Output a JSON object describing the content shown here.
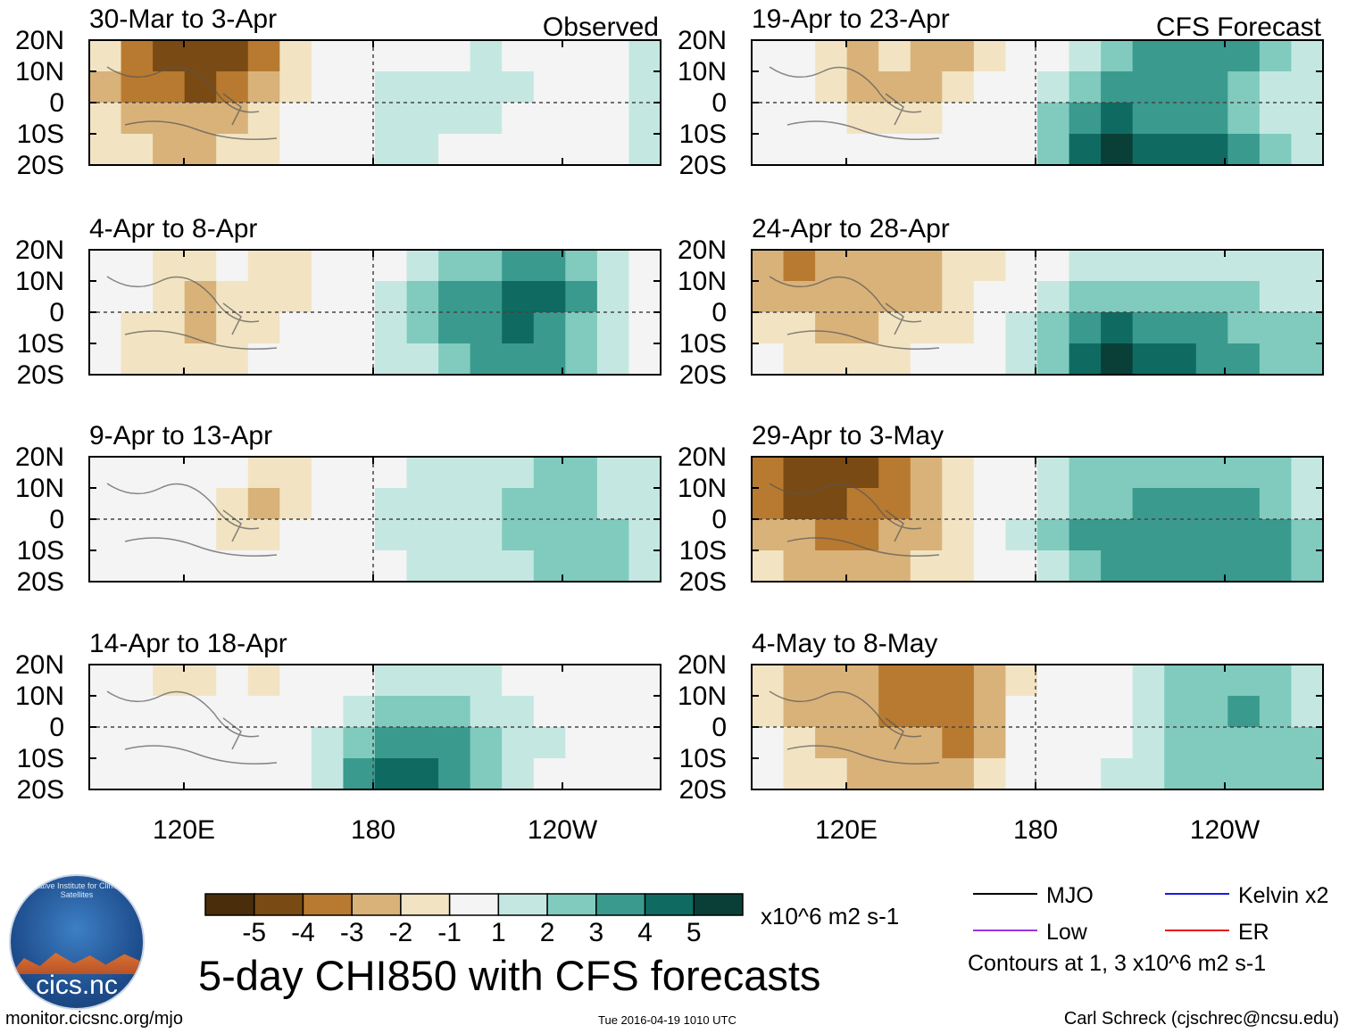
{
  "chart_data": {
    "type": "heatmap",
    "title": "5-day CHI850 with CFS forecasts",
    "colorbar": {
      "unit": "x10^6 m2 s-1",
      "tick_labels": [
        "-5",
        "-4",
        "-3",
        "-2",
        "-1",
        "1",
        "2",
        "3",
        "4",
        "5"
      ],
      "bounds": [
        -5,
        -4,
        -3,
        -2,
        -1,
        1,
        2,
        3,
        4,
        5
      ],
      "colors": [
        "#4a2d0a",
        "#7a4a14",
        "#b87a30",
        "#d9b27a",
        "#f2e4c2",
        "#f4f4f4",
        "#c4e8e1",
        "#80cbbe",
        "#3a9a8e",
        "#0f6b61",
        "#0a3f37"
      ]
    },
    "x_ticks": [
      "120E",
      "180",
      "120W"
    ],
    "y_ticks": [
      "20N",
      "10N",
      "0",
      "10S",
      "20S"
    ],
    "panels": [
      {
        "column": "left",
        "row": 0,
        "title": "30-Mar to 3-Apr",
        "tag": "Observed",
        "cells": [
          [
            -2,
            -4,
            -5,
            -5,
            -5,
            -4,
            -2,
            -1,
            0,
            0,
            0,
            0,
            1,
            0,
            0,
            0,
            0,
            1
          ],
          [
            -3,
            -4,
            -4,
            -5,
            -4,
            -3,
            -2,
            -1,
            0,
            1,
            1,
            1,
            1,
            1,
            0,
            0,
            0,
            1
          ],
          [
            -2,
            -3,
            -3,
            -3,
            -3,
            -2,
            -1,
            0,
            0,
            1,
            1,
            1,
            1,
            0,
            0,
            0,
            0,
            1
          ],
          [
            -2,
            -2,
            -3,
            -3,
            -2,
            -2,
            -1,
            0,
            0,
            1,
            1,
            0,
            0,
            0,
            0,
            0,
            0,
            1
          ]
        ]
      },
      {
        "column": "left",
        "row": 1,
        "title": "4-Apr to 8-Apr",
        "tag": "",
        "cells": [
          [
            -1,
            -1,
            -2,
            -2,
            -1,
            -2,
            -2,
            -1,
            0,
            0,
            1,
            2,
            2,
            3,
            3,
            2,
            1,
            0
          ],
          [
            -1,
            -1,
            -2,
            -3,
            -2,
            -2,
            -2,
            -1,
            0,
            1,
            2,
            3,
            3,
            4,
            4,
            3,
            1,
            0
          ],
          [
            -1,
            -2,
            -2,
            -3,
            -2,
            -2,
            -1,
            -1,
            0,
            1,
            2,
            3,
            3,
            4,
            3,
            2,
            1,
            0
          ],
          [
            -1,
            -2,
            -2,
            -2,
            -2,
            -1,
            -1,
            0,
            0,
            1,
            1,
            2,
            3,
            3,
            3,
            2,
            1,
            0
          ]
        ]
      },
      {
        "column": "left",
        "row": 2,
        "title": "9-Apr to 13-Apr",
        "tag": "",
        "cells": [
          [
            -1,
            0,
            0,
            -1,
            -1,
            -2,
            -2,
            -1,
            0,
            0,
            1,
            1,
            1,
            1,
            2,
            2,
            1,
            1
          ],
          [
            0,
            0,
            0,
            -1,
            -2,
            -3,
            -2,
            -1,
            0,
            1,
            1,
            1,
            1,
            2,
            2,
            2,
            1,
            1
          ],
          [
            0,
            0,
            -1,
            -1,
            -2,
            -2,
            -1,
            0,
            0,
            1,
            1,
            1,
            1,
            2,
            2,
            2,
            2,
            1
          ],
          [
            0,
            0,
            -1,
            -1,
            -1,
            -1,
            -1,
            0,
            0,
            0,
            1,
            1,
            1,
            1,
            2,
            2,
            2,
            1
          ]
        ]
      },
      {
        "column": "left",
        "row": 3,
        "title": "14-Apr to 18-Apr",
        "tag": "",
        "cells": [
          [
            -1,
            -1,
            -2,
            -2,
            -1,
            -2,
            -1,
            0,
            0,
            1,
            1,
            1,
            1,
            0,
            0,
            0,
            0,
            0
          ],
          [
            -1,
            -1,
            -1,
            -1,
            -1,
            -1,
            0,
            0,
            1,
            2,
            2,
            2,
            1,
            1,
            0,
            0,
            0,
            0
          ],
          [
            0,
            -1,
            -1,
            0,
            0,
            0,
            0,
            1,
            2,
            3,
            3,
            3,
            2,
            1,
            1,
            0,
            0,
            0
          ],
          [
            0,
            0,
            0,
            0,
            0,
            0,
            0,
            1,
            3,
            4,
            4,
            3,
            2,
            1,
            0,
            0,
            0,
            0
          ]
        ]
      },
      {
        "column": "right",
        "row": 0,
        "title": "19-Apr to 23-Apr",
        "tag": "CFS Forecast",
        "cells": [
          [
            -1,
            -1,
            -2,
            -3,
            -2,
            -3,
            -3,
            -2,
            -1,
            0,
            1,
            2,
            3,
            3,
            3,
            3,
            2,
            1
          ],
          [
            -1,
            -1,
            -2,
            -3,
            -3,
            -3,
            -2,
            -1,
            0,
            1,
            2,
            3,
            3,
            3,
            3,
            2,
            1,
            1
          ],
          [
            0,
            -1,
            -1,
            -2,
            -2,
            -2,
            -1,
            -1,
            0,
            2,
            3,
            4,
            3,
            3,
            3,
            2,
            1,
            1
          ],
          [
            0,
            0,
            -1,
            -1,
            -1,
            -1,
            -1,
            0,
            0,
            2,
            4,
            5,
            4,
            4,
            4,
            3,
            2,
            1
          ]
        ]
      },
      {
        "column": "right",
        "row": 1,
        "title": "24-Apr to 28-Apr",
        "tag": "",
        "cells": [
          [
            -3,
            -4,
            -3,
            -3,
            -3,
            -3,
            -2,
            -2,
            -1,
            0,
            1,
            1,
            1,
            1,
            1,
            1,
            1,
            1
          ],
          [
            -3,
            -3,
            -3,
            -3,
            -3,
            -3,
            -2,
            -1,
            0,
            1,
            2,
            2,
            2,
            2,
            2,
            2,
            1,
            1
          ],
          [
            -2,
            -2,
            -3,
            -3,
            -2,
            -2,
            -2,
            -1,
            1,
            2,
            3,
            4,
            3,
            3,
            3,
            2,
            2,
            2
          ],
          [
            -1,
            -2,
            -2,
            -2,
            -2,
            -1,
            -1,
            0,
            1,
            2,
            4,
            5,
            4,
            4,
            3,
            3,
            2,
            2
          ]
        ]
      },
      {
        "column": "right",
        "row": 2,
        "title": "29-Apr to 3-May",
        "tag": "",
        "cells": [
          [
            -4,
            -5,
            -5,
            -5,
            -4,
            -3,
            -2,
            -1,
            0,
            1,
            2,
            2,
            2,
            2,
            2,
            2,
            2,
            1
          ],
          [
            -4,
            -5,
            -5,
            -4,
            -4,
            -3,
            -2,
            -1,
            0,
            1,
            2,
            2,
            3,
            3,
            3,
            3,
            2,
            1
          ],
          [
            -3,
            -3,
            -4,
            -4,
            -3,
            -3,
            -2,
            -1,
            1,
            2,
            3,
            3,
            3,
            3,
            3,
            3,
            3,
            2
          ],
          [
            -2,
            -3,
            -3,
            -3,
            -3,
            -2,
            -2,
            -1,
            0,
            1,
            2,
            3,
            3,
            3,
            3,
            3,
            3,
            2
          ]
        ]
      },
      {
        "column": "right",
        "row": 3,
        "title": "4-May to 8-May",
        "tag": "",
        "cells": [
          [
            -2,
            -3,
            -3,
            -3,
            -4,
            -4,
            -4,
            -3,
            -2,
            -1,
            0,
            0,
            1,
            2,
            2,
            2,
            2,
            1
          ],
          [
            -2,
            -3,
            -3,
            -3,
            -4,
            -4,
            -4,
            -3,
            -1,
            0,
            0,
            0,
            1,
            2,
            2,
            3,
            2,
            1
          ],
          [
            -1,
            -2,
            -3,
            -3,
            -3,
            -3,
            -4,
            -3,
            -1,
            0,
            0,
            0,
            1,
            2,
            2,
            2,
            2,
            2
          ],
          [
            -1,
            -2,
            -2,
            -3,
            -3,
            -3,
            -3,
            -2,
            -1,
            0,
            0,
            1,
            1,
            2,
            2,
            2,
            2,
            2
          ]
        ]
      }
    ]
  },
  "legend": {
    "items": [
      {
        "label": "MJO",
        "color": "#000000"
      },
      {
        "label": "Kelvin x2",
        "color": "#1a1ae6"
      },
      {
        "label": "Low",
        "color": "#9933e6"
      },
      {
        "label": "ER",
        "color": "#e61a1a"
      }
    ],
    "note": "Contours at 1, 3 x10^6 m2 s-1"
  },
  "logo": {
    "text": "cics.nc",
    "ring_text": "Cooperative Institute for Climate and Satellites"
  },
  "footer": {
    "url": "monitor.cicsnc.org/mjo",
    "timestamp": "Tue 2016-04-19 1010 UTC",
    "author": "Carl Schreck (cjschrec@ncsu.edu)"
  }
}
